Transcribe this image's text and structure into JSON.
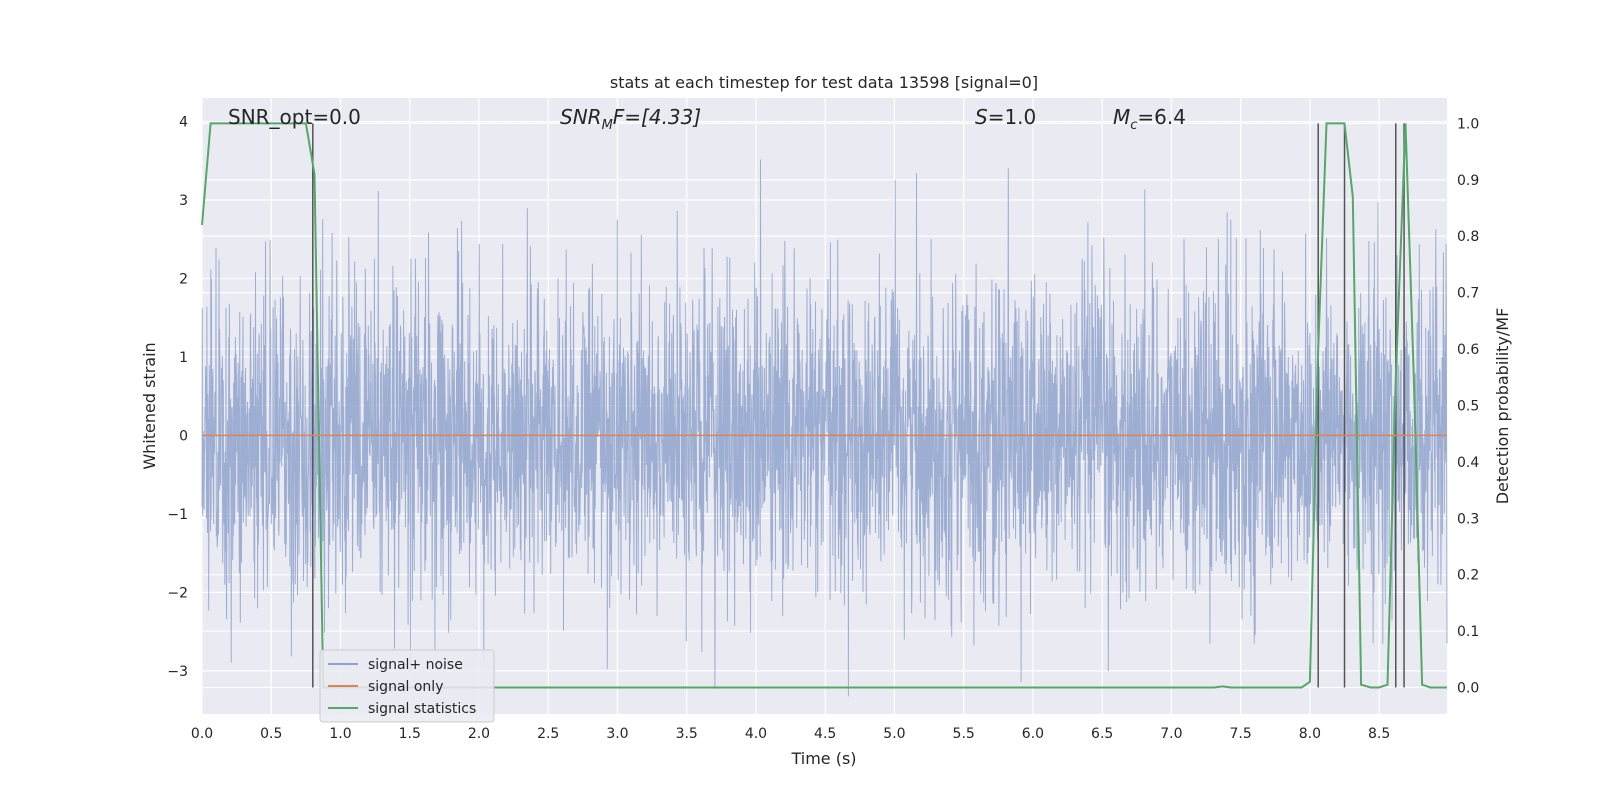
{
  "chart_data": {
    "type": "line",
    "title": "stats at each timestep for test data 13598 [signal=0]",
    "xlabel": "Time (s)",
    "ylabel_left": "Whitened strain",
    "ylabel_right": "Detection probability/MF",
    "xlim": [
      0.0,
      8.99
    ],
    "ylim_left": [
      -3.55,
      4.3
    ],
    "ylim_right": [
      -0.047,
      1.045
    ],
    "xticks": [
      "0.0",
      "0.5",
      "1.0",
      "1.5",
      "2.0",
      "2.5",
      "3.0",
      "3.5",
      "4.0",
      "4.5",
      "5.0",
      "5.5",
      "6.0",
      "6.5",
      "7.0",
      "7.5",
      "8.0",
      "8.5"
    ],
    "xtick_values": [
      0.0,
      0.5,
      1.0,
      1.5,
      2.0,
      2.5,
      3.0,
      3.5,
      4.0,
      4.5,
      5.0,
      5.5,
      6.0,
      6.5,
      7.0,
      7.5,
      8.0,
      8.5
    ],
    "yticks_left": [
      "−3",
      "−2",
      "−1",
      "0",
      "1",
      "2",
      "3",
      "4"
    ],
    "ytick_values_left": [
      -3,
      -2,
      -1,
      0,
      1,
      2,
      3,
      4
    ],
    "yticks_right": [
      "0.0",
      "0.1",
      "0.2",
      "0.3",
      "0.4",
      "0.5",
      "0.6",
      "0.7",
      "0.8",
      "0.9",
      "1.0"
    ],
    "ytick_values_right": [
      0.0,
      0.1,
      0.2,
      0.3,
      0.4,
      0.5,
      0.6,
      0.7,
      0.8,
      0.9,
      1.0
    ],
    "grid": true,
    "legend_position": "lower-left",
    "annotations": {
      "snr_opt": "SNR_opt=0.0",
      "snr_mf_base": "SNR",
      "snr_mf_sub": "M",
      "snr_mf_rest": "F=[4.33]",
      "s_label": "S",
      "s_value": "=1.0",
      "mc_base": "M",
      "mc_sub": "c",
      "mc_value": "=6.4"
    },
    "series": [
      {
        "name": "signal+ noise",
        "color": "#8fa3cc",
        "kind": "noise",
        "approx_std": 1.0,
        "samples": 4096
      },
      {
        "name": "signal only",
        "color": "#dd8452",
        "values_x": [
          0.0,
          8.99
        ],
        "values_y": [
          0.0,
          0.0
        ]
      },
      {
        "name": "signal statistics",
        "color": "#55a868",
        "x": [
          0.0,
          0.062,
          0.125,
          0.188,
          0.25,
          0.312,
          0.375,
          0.438,
          0.5,
          0.562,
          0.625,
          0.688,
          0.75,
          0.812,
          0.875,
          0.938,
          1.0,
          2.0,
          3.0,
          4.0,
          5.0,
          6.0,
          7.0,
          7.31,
          7.37,
          7.43,
          7.5,
          7.62,
          7.75,
          7.87,
          7.94,
          8.0,
          8.06,
          8.12,
          8.19,
          8.25,
          8.31,
          8.37,
          8.44,
          8.5,
          8.56,
          8.62,
          8.69,
          8.75,
          8.81,
          8.87,
          8.94,
          8.99
        ],
        "y": [
          0.82,
          1.0,
          1.0,
          1.0,
          1.0,
          1.0,
          1.0,
          1.0,
          1.0,
          1.0,
          1.0,
          1.0,
          1.0,
          0.91,
          0.0,
          0.0,
          0.0,
          0.0,
          0.0,
          0.0,
          0.0,
          0.0,
          0.0,
          0.0,
          0.002,
          0.0,
          0.0,
          0.0,
          0.0,
          0.0,
          0.0,
          0.01,
          0.6,
          1.0,
          1.0,
          1.0,
          0.87,
          0.005,
          0.0,
          0.0,
          0.005,
          0.55,
          1.0,
          0.55,
          0.005,
          0.0,
          0.0,
          0.0
        ]
      }
    ],
    "vertical_markers": {
      "color": "#555555",
      "x": [
        0.8,
        8.06,
        8.25,
        8.62,
        8.68
      ],
      "y_top": 1.0,
      "y_bottom": 0.0
    }
  }
}
